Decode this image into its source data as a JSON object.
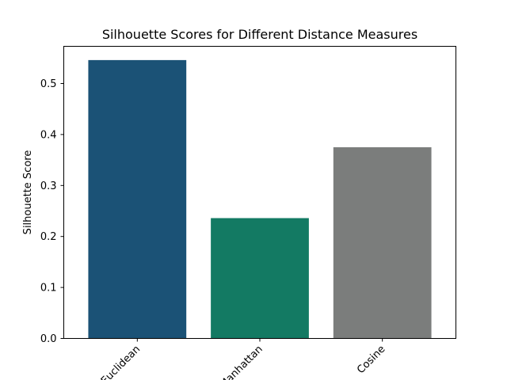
{
  "chart_data": {
    "type": "bar",
    "title": "Silhouette Scores for Different Distance Measures",
    "xlabel": "",
    "ylabel": "Silhouette Score",
    "categories": [
      "Euclidean",
      "Manhattan",
      "Cosine"
    ],
    "values": [
      0.546,
      0.236,
      0.375
    ],
    "colors": [
      "#1b5276",
      "#137a63",
      "#7b7d7c"
    ],
    "ylim": [
      0,
      0.573
    ],
    "yticks": [
      0.0,
      0.1,
      0.2,
      0.3,
      0.4,
      0.5
    ],
    "ytick_labels": [
      "0.0",
      "0.1",
      "0.2",
      "0.3",
      "0.4",
      "0.5"
    ],
    "xtick_rotation": 45,
    "grid": false,
    "legend": "none"
  }
}
